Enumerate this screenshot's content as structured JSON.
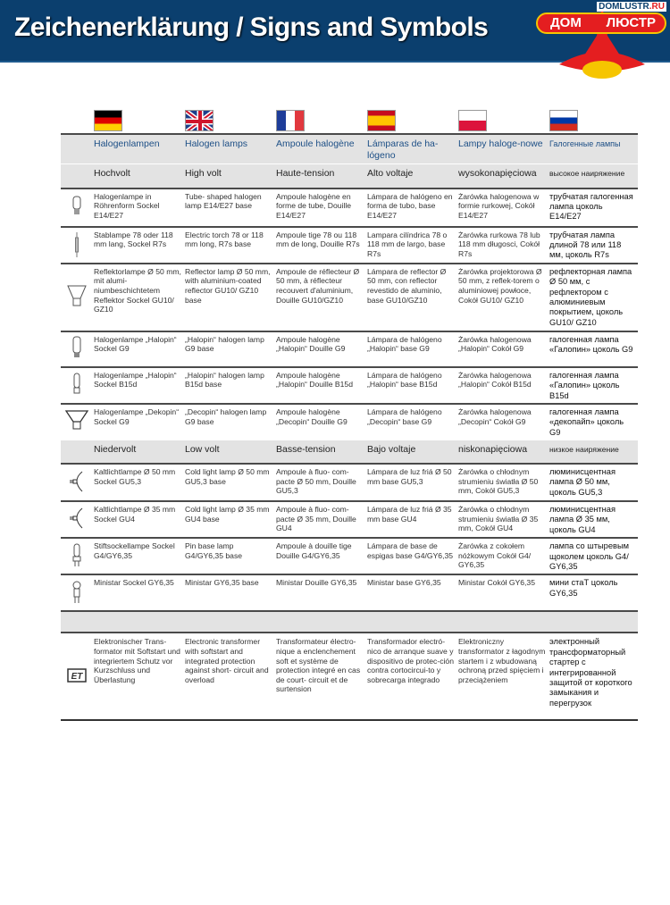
{
  "header": {
    "title": "Zeichenerklärung / Signs and Symbols",
    "logo_site": "DOMLUSTR",
    "logo_site_tld": ".RU",
    "logo_left": "ДОМ",
    "logo_right": "ЛЮСТР",
    "background": "#0b3f6e"
  },
  "languages": [
    "de",
    "en",
    "fr",
    "es",
    "pl",
    "ru"
  ],
  "table": {
    "header": [
      "Halogenlampen",
      "Halogen lamps",
      "Ampoule halogène",
      "Lámparas de ha-lógeno",
      "Lampy haloge-nowe",
      "Галогенные лампы"
    ],
    "high_volt": [
      "Hochvolt",
      "High volt",
      "Haute-tension",
      "Alto voltaje",
      "wysokonapięciowa",
      "высокое наиряжение"
    ],
    "high_rows": [
      {
        "icon": "tube-lamp-icon",
        "cells": [
          "Halogenlampe in Röhrenform Sockel E14/E27",
          "Tube- shaped halogen lamp E14/E27 base",
          "Ampoule halogène en forme de tube, Douille E14/E27",
          "Lámpara de halógeno en forma de tubo, base E14/E27",
          "Żarówka halogenowa w formie rurkowej, Cokół E14/E27",
          "трубчатая галогенная лампа цоколь E14/E27"
        ]
      },
      {
        "icon": "torch-lamp-icon",
        "cells": [
          "Stablampe 78 oder 118 mm lang, Sockel R7s",
          "Electric torch 78 or 118 mm long, R7s base",
          "Ampoule tige 78 ou 118 mm de long, Douille R7s",
          "Lampara cilíndrica 78 o 118 mm de largo, base R7s",
          "Żarówka rurkowa 78 lub 118 mm długosci, Cokół R7s",
          "трубчатая лампа длиной 78 или 118 мм, цоколь R7s"
        ]
      },
      {
        "icon": "reflector-lamp-icon",
        "cells": [
          "Reflektorlampe Ø 50 mm, mit alumi-niumbeschichtetem Reflektor Sockel GU10/ GZ10",
          "Reflector lamp Ø 50 mm, with aluminium-coated reflector GU10/ GZ10 base",
          "Ampoule de réflecteur Ø 50 mm, à réflecteur recouvert d'aluminium, Douille GU10/GZ10",
          "Lámpara de reflector Ø 50 mm, con reflector revestido de aluminio, base GU10/GZ10",
          "Żarówka projektorowa Ø 50 mm, z reflek-torem o aluminiowej powłoce, Cokół GU10/ GZ10",
          "рефлекторная лампа Ø 50 мм, с рефлектором с алюминиевым покрытием, цоколь GU10/ GZ10"
        ]
      },
      {
        "icon": "halopin-g9-icon",
        "cells": [
          "Halogenlampe „Halopin“ Sockel G9",
          "„Halopin“ halogen lamp G9 base",
          "Ampoule halogène „Halopin“ Douille G9",
          "Lámpara de halógeno „Halopin“ base G9",
          "Żarówka halogenowa „Halopin“ Cokół G9",
          "галогенная лампа «Галопин» цоколь G9"
        ]
      },
      {
        "icon": "halopin-b15d-icon",
        "cells": [
          "Halogenlampe „Halopin“ Sockel B15d",
          "„Halopin“ halogen lamp B15d base",
          "Ampoule halogène „Halopin“ Douille B15d",
          "Lámpara de halógeno „Halopin“ base B15d",
          "Żarówka halogenowa „Halopin“ Cokół B15d",
          "галогенная лампа «Галопин» цоколь B15d"
        ]
      },
      {
        "icon": "decopin-lamp-icon",
        "cells": [
          "Halogenlampe „Dekopin“ Sockel G9",
          "„Decopin“ halogen lamp G9 base",
          "Ampoule halogène „Decopin“ Douille G9",
          "Lámpara de halógeno „Decopin“ base G9",
          "Żarówka halogenowa „Decopin“ Cokół G9",
          "галогенная лампа «декопайп» цоколь G9"
        ]
      }
    ],
    "low_volt": [
      "Niedervolt",
      "Low volt",
      "Basse-tension",
      "Bajo voltaje",
      "niskonapięciowa",
      "низкое наиряжение"
    ],
    "low_rows": [
      {
        "icon": "cold-light-50-icon",
        "cells": [
          "Kaltlichtlampe Ø 50 mm Sockel GU5,3",
          "Cold light lamp Ø 50 mm GU5,3 base",
          "Ampoule à fluo- com-pacte Ø 50 mm, Douille GU5,3",
          "Lámpara de luz friá Ø 50 mm base GU5,3",
          "Żarówka o chłodnym strumieniu światła Ø 50 mm, Cokół GU5,3",
          "люминисцентная лампа Ø 50 мм, цоколь GU5,3"
        ]
      },
      {
        "icon": "cold-light-35-icon",
        "cells": [
          "Kaltlichtlampe Ø 35 mm Sockel GU4",
          "Cold light lamp Ø 35 mm GU4 base",
          "Ampoule à fluo- com-pacte Ø 35 mm, Douille GU4",
          "Lámpara de luz friá Ø 35 mm base GU4",
          "Żarówka o chłodnym strumieniu światła Ø 35 mm, Cokół GU4",
          "люминисцентная лампа Ø 35 мм, цоколь GU4"
        ]
      },
      {
        "icon": "pin-base-lamp-icon",
        "cells": [
          "Stiftsockellampe Sockel G4/GY6,35",
          "Pin base lamp G4/GY6,35 base",
          "Ampoule à douille tige Douille G4/GY6,35",
          "Lámpara de base de espigas base G4/GY6,35",
          "Żarówka z cokołem nóżkowym Cokół G4/ GY6,35",
          "лампа со штыревым щоколем цоколь G4/ GY6,35"
        ]
      },
      {
        "icon": "ministar-lamp-icon",
        "cells": [
          "Ministar Sockel GY6,35",
          "Ministar GY6,35 base",
          "Ministar Douille GY6,35",
          "Ministar base GY6,35",
          "Ministar Cokół GY6,35",
          "мини стаТ цоколь GY6,35"
        ]
      }
    ],
    "transformer_row": {
      "icon": "electronic-transformer-icon",
      "icon_text": "ET",
      "cells": [
        "Elektronischer Trans-formator mit Softstart und integriertem Schutz vor Kurzschluss und Überlastung",
        "Electronic transformer with softstart and integrated protection against short- circuit and overload",
        "Transformateur électro-nique a enclenchement soft et système de protection integré en cas de court- circuit et de surtension",
        "Transformador electró-nico de arranque suave y dispositivo de protec-ción contra cortocircui-to y sobrecarga integrado",
        "Elektroniczny transformator z łagodnym startem i z wbudowaną ochroną przed spięciem i przeciążeniem",
        "электронный трансформаторный стартер с интегрированной защитой от короткого замыкания и перегрузок"
      ]
    }
  }
}
